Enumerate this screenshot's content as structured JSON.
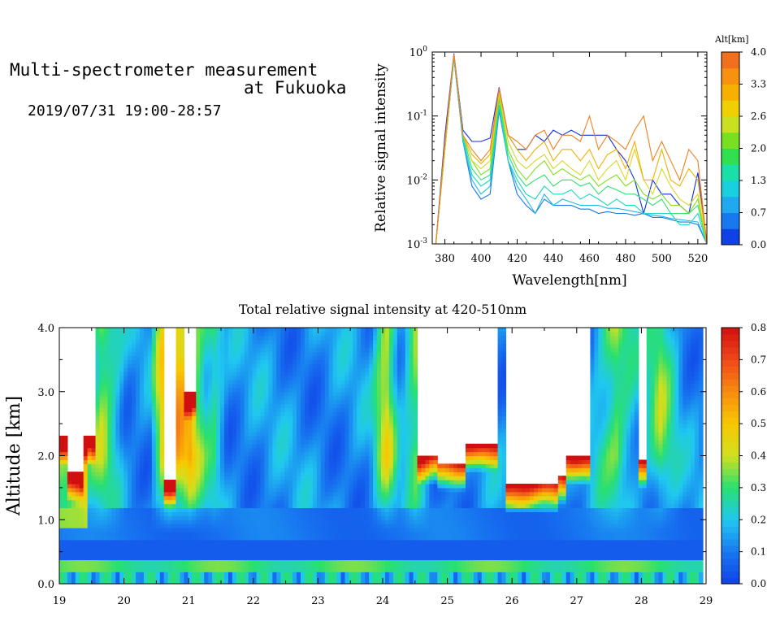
{
  "header": {
    "title_line1": "Multi-spectrometer measurement",
    "title_line2": "at Fukuoka",
    "subtitle": "2019/07/31 19:00-28:57"
  },
  "chart_data": [
    {
      "type": "line",
      "title": "",
      "xlabel": "Wavelength[nm]",
      "ylabel": "Relative signal intensity",
      "yscale": "log",
      "xlim": [
        373,
        525
      ],
      "ylim": [
        0.001,
        1
      ],
      "xticks": [
        380,
        400,
        420,
        440,
        460,
        480,
        500,
        520
      ],
      "yticks": [
        {
          "base": "10",
          "exp": "0",
          "v": 1
        },
        {
          "base": "10",
          "exp": "-1",
          "v": 0.1
        },
        {
          "base": "10",
          "exp": "-2",
          "v": 0.01
        },
        {
          "base": "10",
          "exp": "-3",
          "v": 0.001
        }
      ],
      "x": [
        375,
        380,
        385,
        390,
        395,
        400,
        405,
        410,
        415,
        420,
        425,
        430,
        435,
        440,
        445,
        450,
        455,
        460,
        465,
        470,
        475,
        480,
        485,
        490,
        495,
        500,
        505,
        510,
        515,
        520,
        525
      ],
      "colorbar": {
        "label": "Alt[km]",
        "ticks": [
          "4.0",
          "3.3",
          "2.6",
          "2.0",
          "1.3",
          "0.7",
          "0.0"
        ]
      },
      "series": [
        {
          "color": "#1030e0",
          "values": [
            0.001,
            0.05,
            0.95,
            0.06,
            0.04,
            0.04,
            0.045,
            0.28,
            0.05,
            0.03,
            0.03,
            0.05,
            0.04,
            0.06,
            0.05,
            0.06,
            0.05,
            0.05,
            0.05,
            0.05,
            0.03,
            0.02,
            0.01,
            0.003,
            0.01,
            0.006,
            0.006,
            0.004,
            0.003,
            0.013,
            0.001
          ]
        },
        {
          "color": "#1878e8",
          "values": [
            0.001,
            0.03,
            0.8,
            0.04,
            0.008,
            0.005,
            0.006,
            0.12,
            0.02,
            0.006,
            0.004,
            0.003,
            0.005,
            0.004,
            0.004,
            0.004,
            0.0035,
            0.0035,
            0.003,
            0.0032,
            0.003,
            0.003,
            0.0028,
            0.003,
            0.0026,
            0.0026,
            0.0024,
            0.0022,
            0.0022,
            0.002,
            0.001
          ]
        },
        {
          "color": "#20b8e8",
          "values": [
            0.001,
            0.03,
            0.8,
            0.04,
            0.01,
            0.006,
            0.008,
            0.13,
            0.02,
            0.008,
            0.005,
            0.003,
            0.006,
            0.004,
            0.005,
            0.0045,
            0.004,
            0.004,
            0.004,
            0.0036,
            0.0036,
            0.0034,
            0.0032,
            0.003,
            0.0028,
            0.0027,
            0.0025,
            0.0024,
            0.0023,
            0.0022,
            0.001
          ]
        },
        {
          "color": "#18d8c0",
          "values": [
            0.001,
            0.03,
            0.85,
            0.045,
            0.012,
            0.008,
            0.01,
            0.15,
            0.02,
            0.01,
            0.006,
            0.005,
            0.008,
            0.006,
            0.006,
            0.007,
            0.005,
            0.006,
            0.005,
            0.004,
            0.005,
            0.004,
            0.004,
            0.003,
            0.003,
            0.003,
            0.003,
            0.002,
            0.002,
            0.003,
            0.001
          ]
        },
        {
          "color": "#30e070",
          "values": [
            0.001,
            0.03,
            0.9,
            0.05,
            0.015,
            0.01,
            0.012,
            0.18,
            0.025,
            0.012,
            0.008,
            0.01,
            0.012,
            0.008,
            0.01,
            0.01,
            0.008,
            0.009,
            0.006,
            0.008,
            0.007,
            0.006,
            0.006,
            0.005,
            0.004,
            0.005,
            0.003,
            0.003,
            0.003,
            0.004,
            0.001
          ]
        },
        {
          "color": "#80e020",
          "values": [
            0.001,
            0.03,
            0.9,
            0.05,
            0.02,
            0.012,
            0.015,
            0.2,
            0.03,
            0.015,
            0.01,
            0.015,
            0.02,
            0.012,
            0.015,
            0.012,
            0.01,
            0.012,
            0.008,
            0.01,
            0.012,
            0.008,
            0.01,
            0.006,
            0.005,
            0.006,
            0.004,
            0.004,
            0.003,
            0.005,
            0.001
          ]
        },
        {
          "color": "#d8d820",
          "values": [
            0.001,
            0.03,
            0.9,
            0.05,
            0.02,
            0.015,
            0.02,
            0.22,
            0.04,
            0.02,
            0.015,
            0.02,
            0.025,
            0.015,
            0.02,
            0.015,
            0.012,
            0.02,
            0.01,
            0.015,
            0.02,
            0.01,
            0.03,
            0.01,
            0.006,
            0.015,
            0.008,
            0.005,
            0.004,
            0.006,
            0.001
          ]
        },
        {
          "color": "#f0b000",
          "values": [
            0.001,
            0.035,
            0.9,
            0.05,
            0.025,
            0.018,
            0.025,
            0.25,
            0.05,
            0.03,
            0.02,
            0.03,
            0.04,
            0.02,
            0.03,
            0.03,
            0.02,
            0.03,
            0.015,
            0.025,
            0.03,
            0.015,
            0.04,
            0.01,
            0.01,
            0.03,
            0.01,
            0.008,
            0.015,
            0.01,
            0.001
          ]
        },
        {
          "color": "#f08020",
          "values": [
            0.001,
            0.04,
            0.92,
            0.05,
            0.03,
            0.02,
            0.03,
            0.27,
            0.05,
            0.04,
            0.03,
            0.05,
            0.06,
            0.03,
            0.05,
            0.05,
            0.04,
            0.1,
            0.03,
            0.05,
            0.04,
            0.03,
            0.06,
            0.1,
            0.02,
            0.04,
            0.02,
            0.01,
            0.03,
            0.02,
            0.001
          ]
        }
      ]
    },
    {
      "type": "heatmap",
      "title": "Total relative signal intensity at 420-510nm",
      "xlabel": "",
      "ylabel": "Altitude [km]",
      "xlim": [
        19,
        29
      ],
      "ylim": [
        0,
        4
      ],
      "xticks": [
        "19",
        "20",
        "21",
        "22",
        "23",
        "24",
        "25",
        "26",
        "27",
        "28",
        "29"
      ],
      "yticks": [
        "0.0",
        "1.0",
        "2.0",
        "3.0",
        "4.0"
      ],
      "colorbar": {
        "ticks": [
          "0.0",
          "0.1",
          "0.2",
          "0.3",
          "0.4",
          "0.5",
          "0.6",
          "0.7",
          "0.8"
        ],
        "range": [
          0,
          0.8
        ]
      },
      "data_end_x": 28.95,
      "clouds": [
        {
          "x0": 19.0,
          "x1": 19.55,
          "base": 2.3
        },
        {
          "x0": 19.15,
          "x1": 19.35,
          "base": 1.75
        },
        {
          "x0": 20.6,
          "x1": 20.8,
          "base": 1.6
        },
        {
          "x0": 20.95,
          "x1": 21.1,
          "base": 3.0
        },
        {
          "x0": 24.55,
          "x1": 24.85,
          "base": 2.0
        },
        {
          "x0": 24.85,
          "x1": 25.25,
          "base": 1.9
        },
        {
          "x0": 25.25,
          "x1": 25.75,
          "base": 2.2
        },
        {
          "x0": 25.9,
          "x1": 26.25,
          "base": 1.55
        },
        {
          "x0": 26.25,
          "x1": 26.7,
          "base": 1.55
        },
        {
          "x0": 26.7,
          "x1": 26.85,
          "base": 1.7
        },
        {
          "x0": 26.85,
          "x1": 27.2,
          "base": 2.0
        },
        {
          "x0": 27.95,
          "x1": 28.1,
          "base": 1.95
        }
      ]
    }
  ]
}
